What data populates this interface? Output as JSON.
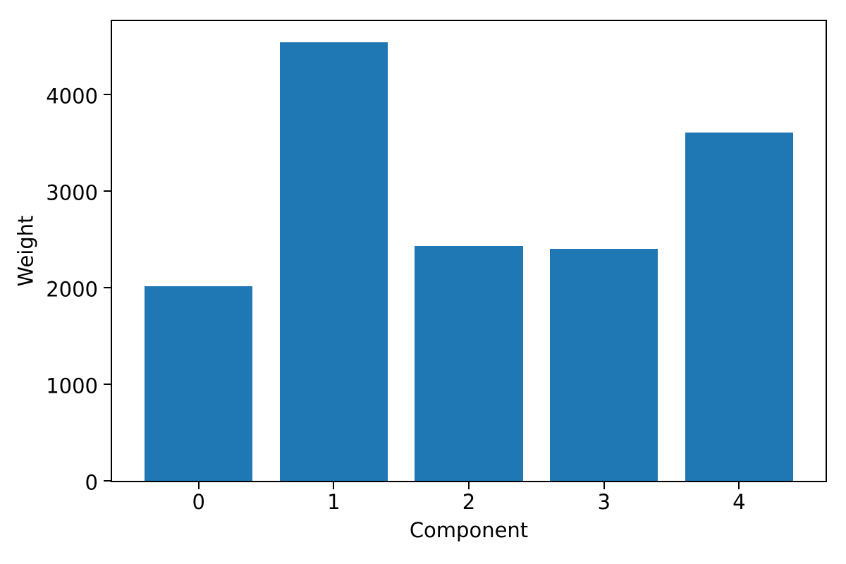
{
  "chart_data": {
    "type": "bar",
    "xlabel": "Component",
    "ylabel": "Weight",
    "categories": [
      "0",
      "1",
      "2",
      "3",
      "4"
    ],
    "values": [
      2015,
      4540,
      2430,
      2400,
      3605
    ],
    "yticks": [
      {
        "label": "0",
        "value": 0
      },
      {
        "label": "1000",
        "value": 1000
      },
      {
        "label": "2000",
        "value": 2000
      },
      {
        "label": "3000",
        "value": 3000
      },
      {
        "label": "4000",
        "value": 4000
      }
    ],
    "ylim": [
      0,
      4760
    ],
    "xlim": [
      -0.64,
      4.64
    ],
    "bar_width_units": 0.8,
    "bar_color": "#1f77b4",
    "grid": false,
    "legend_position": "none"
  },
  "figure": {
    "background_color": "#ffffff",
    "spine_color": "#000000",
    "text_color": "#000000"
  }
}
